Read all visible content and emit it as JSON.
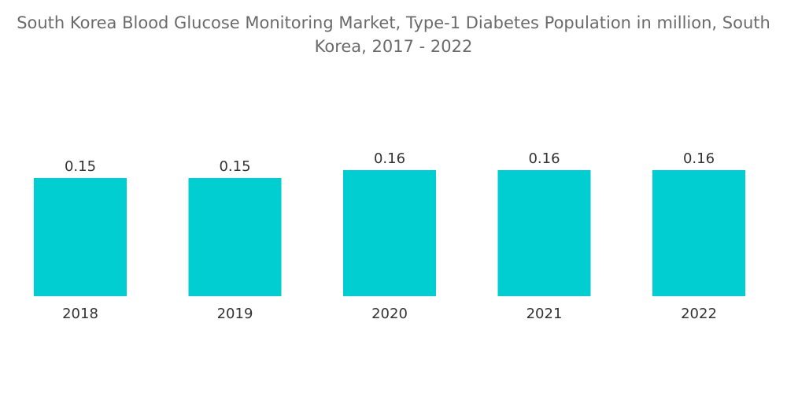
{
  "title_lines": [
    "South Korea Blood Glucose Monitoring Market, Type-1 Diabetes Population in million, South",
    "Korea, 2017 - 2022"
  ],
  "chart_data": {
    "type": "bar",
    "title": "South Korea Blood Glucose Monitoring Market, Type-1 Diabetes Population in million, South Korea, 2017 - 2022",
    "categories": [
      "2018",
      "2019",
      "2020",
      "2021",
      "2022"
    ],
    "values": [
      0.15,
      0.15,
      0.16,
      0.16,
      0.16
    ],
    "data_labels": [
      "0.15",
      "0.15",
      "0.16",
      "0.16",
      "0.16"
    ],
    "xlabel": "",
    "ylabel": "",
    "grid": false,
    "legend": "none",
    "bar_color": "#00ced1"
  }
}
